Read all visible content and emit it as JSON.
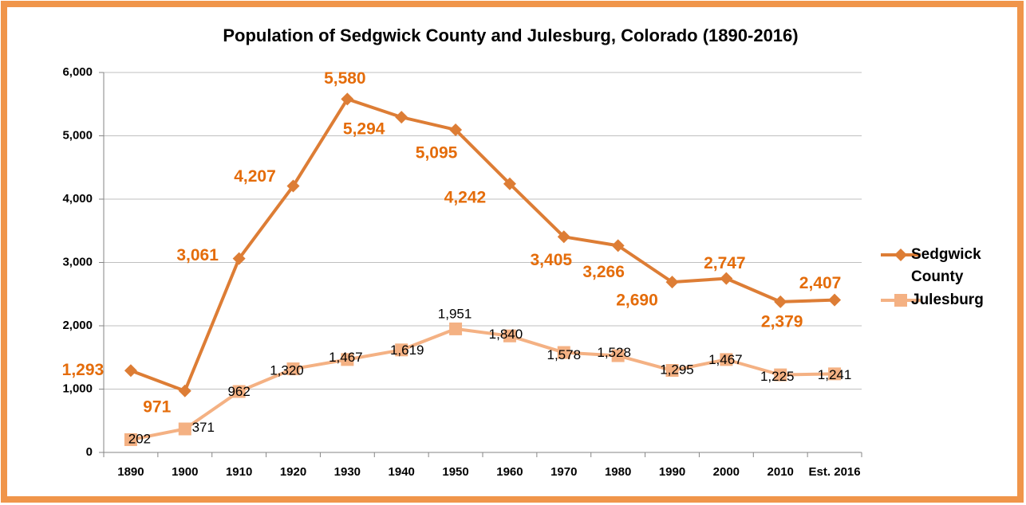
{
  "chart_data": {
    "type": "line",
    "title": "Population of Sedgwick County and Julesburg, Colorado (1890-2016)",
    "categories": [
      "1890",
      "1900",
      "1910",
      "1920",
      "1930",
      "1940",
      "1950",
      "1960",
      "1970",
      "1980",
      "1990",
      "2000",
      "2010",
      "Est. 2016"
    ],
    "series": [
      {
        "name": "Sedgwick County",
        "color": "#dd7d35",
        "label_color": "#e46c0a",
        "marker": "diamond",
        "values": [
          1293,
          971,
          3061,
          4207,
          5580,
          5294,
          5095,
          4242,
          3405,
          3266,
          2690,
          2747,
          2379,
          2407
        ],
        "value_labels": [
          "1,293",
          "971",
          "3,061",
          "4,207",
          "5,580",
          "5,294",
          "5,095",
          "4,242",
          "3,405",
          "3,266",
          "2,690",
          "2,747",
          "2,379",
          "2,407"
        ]
      },
      {
        "name": "Julesburg",
        "color": "#f4b183",
        "label_color": "#000000",
        "marker": "square",
        "values": [
          202,
          371,
          962,
          1320,
          1467,
          1619,
          1951,
          1840,
          1578,
          1528,
          1295,
          1467,
          1225,
          1241
        ],
        "value_labels": [
          "202",
          "371",
          "962",
          "1,320",
          "1,467",
          "1,619",
          "1,951",
          "1,840",
          "1,578",
          "1,528",
          "1,295",
          "1,467",
          "1,225",
          "1,241"
        ]
      }
    ],
    "ylim": [
      0,
      6000
    ],
    "yticks": [
      0,
      {
        "value": 1000,
        "label": "1,000"
      },
      {
        "value": 2000,
        "label": "2,000"
      },
      {
        "value": 3000,
        "label": "3,000"
      },
      {
        "value": 4000,
        "label": "4,000"
      },
      {
        "value": 5000,
        "label": "5,000"
      },
      {
        "value": 6000,
        "label": "6,000"
      }
    ],
    "grid": true,
    "legend": "right"
  }
}
